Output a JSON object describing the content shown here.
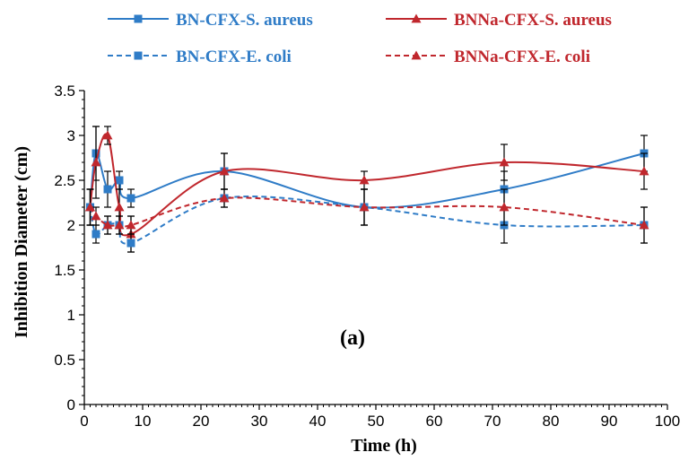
{
  "chart_data": {
    "type": "line",
    "title": "",
    "xlabel": "Time (h)",
    "ylabel": "Inhibition Diameter  (cm)",
    "xlim": [
      0,
      100
    ],
    "ylim": [
      0,
      3.5
    ],
    "xticks": [
      0,
      10,
      20,
      30,
      40,
      50,
      60,
      70,
      80,
      90,
      100
    ],
    "yticks": [
      0,
      0.5,
      1,
      1.5,
      2,
      2.5,
      3,
      3.5
    ],
    "xtick_labels": [
      "0",
      "10",
      "20",
      "30",
      "40",
      "50",
      "60",
      "70",
      "80",
      "90",
      "100"
    ],
    "ytick_labels": [
      "0",
      "0.5",
      "1",
      "1.5",
      "2",
      "2.5",
      "3",
      "3.5"
    ],
    "grid": false,
    "legend_position": "top",
    "annotation": "(a)",
    "x": [
      1,
      2,
      4,
      6,
      8,
      24,
      48,
      72,
      96
    ],
    "series": [
      {
        "name": "BN-CFX-S. aureus",
        "color": "#2f7cc7",
        "marker": "square",
        "dash": "solid",
        "values": [
          2.2,
          2.8,
          2.4,
          2.5,
          2.3,
          2.6,
          2.2,
          2.4,
          2.8
        ],
        "errors": [
          0.2,
          0.3,
          0.2,
          0.1,
          0.1,
          0.2,
          0.2,
          0.2,
          0.2
        ]
      },
      {
        "name": "BNNa-CFX-S. aureus",
        "color": "#c0272d",
        "marker": "triangle",
        "dash": "solid",
        "values": [
          2.2,
          2.7,
          3.0,
          2.2,
          1.9,
          2.6,
          2.5,
          2.7,
          2.6
        ],
        "errors": [
          0.2,
          0.4,
          0.1,
          0.2,
          0.2,
          0.2,
          0.1,
          0.2,
          0.2
        ]
      },
      {
        "name": "BN-CFX-E. coli",
        "color": "#2f7cc7",
        "marker": "square",
        "dash": "dashed",
        "values": [
          2.2,
          1.9,
          2.0,
          2.0,
          1.8,
          2.3,
          2.2,
          2.0,
          2.0
        ],
        "errors": [
          0.2,
          0.1,
          0.1,
          0.1,
          0.1,
          0.1,
          0.2,
          0.2,
          0.2
        ]
      },
      {
        "name": "BNNa-CFX-E. coli",
        "color": "#c0272d",
        "marker": "triangle",
        "dash": "dashed",
        "values": [
          2.2,
          2.1,
          2.0,
          2.0,
          2.0,
          2.3,
          2.2,
          2.2,
          2.0
        ],
        "errors": [
          0.2,
          0.1,
          0.1,
          0.1,
          0.1,
          0.1,
          0.2,
          0.2,
          0.2
        ]
      }
    ]
  }
}
